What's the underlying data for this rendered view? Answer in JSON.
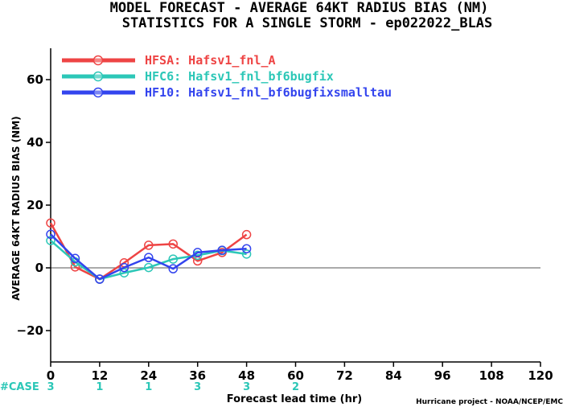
{
  "chart_data": {
    "type": "line",
    "title": "MODEL FORECAST - AVERAGE 64KT RADIUS BIAS (NM)",
    "subtitle": "STATISTICS FOR A SINGLE STORM - ep022022_BLAS",
    "xlabel": "Forecast lead time (hr)",
    "ylabel": "AVERAGE 64KT RADIUS BIAS (NM)",
    "xlim": [
      0,
      120
    ],
    "ylim": [
      -30,
      70
    ],
    "xticks": [
      0,
      12,
      24,
      36,
      48,
      60,
      72,
      84,
      96,
      108,
      120
    ],
    "yticks": [
      -20,
      0,
      20,
      40,
      60
    ],
    "zero_line": true,
    "grid": false,
    "legend_position": "top-left",
    "series": [
      {
        "name": "HFSA: Hafsv1_fnl_A",
        "color": "#ee4444",
        "x": [
          0,
          6,
          12,
          18,
          24,
          30,
          36,
          42,
          48
        ],
        "y": [
          14.3,
          0.3,
          -3.6,
          1.6,
          7.2,
          7.6,
          2.2,
          4.9,
          10.6
        ]
      },
      {
        "name": "HFC6: Hafsv1_fnl_bf6bugfix",
        "color": "#2cc7b7",
        "x": [
          0,
          6,
          12,
          18,
          24,
          30,
          36,
          42,
          48
        ],
        "y": [
          8.7,
          1.9,
          -3.6,
          -1.6,
          0.1,
          2.8,
          4.0,
          5.5,
          4.4
        ]
      },
      {
        "name": "HF10: Hafsv1_fnl_bf6bugfixsmalltau",
        "color": "#3344ee",
        "x": [
          0,
          6,
          12,
          18,
          24,
          30,
          36,
          42,
          48
        ],
        "y": [
          10.7,
          3.0,
          -3.6,
          0.1,
          3.3,
          -0.3,
          4.9,
          5.6,
          6.1
        ]
      }
    ],
    "case_label": "#CASE",
    "case_counts": [
      {
        "x": 0,
        "count": "3"
      },
      {
        "x": 12,
        "count": "1"
      },
      {
        "x": 24,
        "count": "1"
      },
      {
        "x": 36,
        "count": "3"
      },
      {
        "x": 48,
        "count": "3"
      },
      {
        "x": 60,
        "count": "2"
      }
    ],
    "credit": "Hurricane project - NOAA/NCEP/EMC",
    "axis_color": "#000000",
    "zero_line_color": "#777777"
  }
}
